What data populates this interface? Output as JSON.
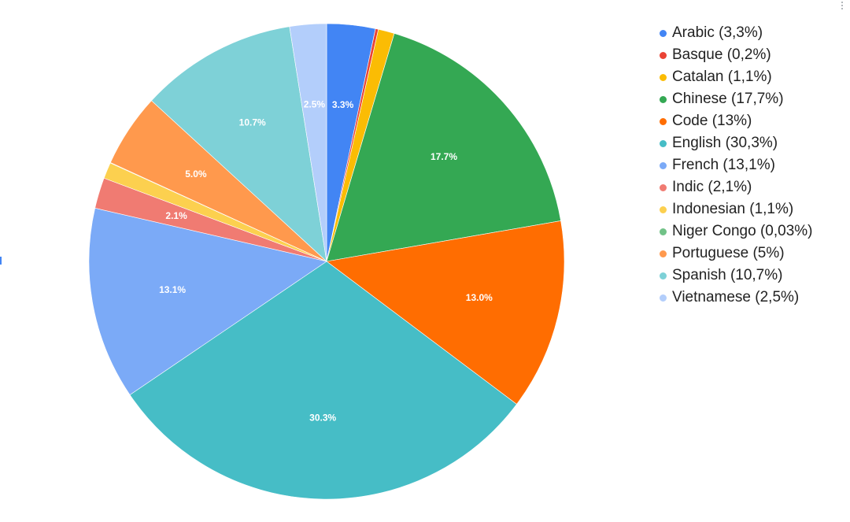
{
  "chart_data": {
    "type": "pie",
    "title": "",
    "slices": [
      {
        "name": "Arabic",
        "legend_label": "Arabic (3,3%)",
        "value": 3.3,
        "data_label": "3.3%",
        "color": "#4285f4"
      },
      {
        "name": "Basque",
        "legend_label": "Basque (0,2%)",
        "value": 0.2,
        "data_label": "",
        "color": "#ea4335"
      },
      {
        "name": "Catalan",
        "legend_label": "Catalan (1,1%)",
        "value": 1.1,
        "data_label": "",
        "color": "#fbbc04"
      },
      {
        "name": "Chinese",
        "legend_label": "Chinese (17,7%)",
        "value": 17.7,
        "data_label": "17.7%",
        "color": "#34a853"
      },
      {
        "name": "Code",
        "legend_label": "Code (13%)",
        "value": 13.0,
        "data_label": "13.0%",
        "color": "#ff6d01"
      },
      {
        "name": "English",
        "legend_label": "English (30,3%)",
        "value": 30.3,
        "data_label": "30.3%",
        "color": "#46bdc6"
      },
      {
        "name": "French",
        "legend_label": "French (13,1%)",
        "value": 13.1,
        "data_label": "13.1%",
        "color": "#7baaf7"
      },
      {
        "name": "Indic",
        "legend_label": "Indic (2,1%)",
        "value": 2.1,
        "data_label": "2.1%",
        "color": "#f07b72"
      },
      {
        "name": "Indonesian",
        "legend_label": "Indonesian (1,1%)",
        "value": 1.1,
        "data_label": "",
        "color": "#fcd04f"
      },
      {
        "name": "Niger Congo",
        "legend_label": "Niger Congo (0,03%)",
        "value": 0.03,
        "data_label": "",
        "color": "#71c287"
      },
      {
        "name": "Portuguese",
        "legend_label": "Portuguese (5%)",
        "value": 5.0,
        "data_label": "5.0%",
        "color": "#ff994d"
      },
      {
        "name": "Spanish",
        "legend_label": "Spanish (10,7%)",
        "value": 10.7,
        "data_label": "10.7%",
        "color": "#7ed1d7"
      },
      {
        "name": "Vietnamese",
        "legend_label": "Vietnamese (2,5%)",
        "value": 2.5,
        "data_label": "2.5%",
        "color": "#b3cefb"
      }
    ],
    "legend_position": "right",
    "start_angle": "top",
    "direction": "clockwise"
  }
}
